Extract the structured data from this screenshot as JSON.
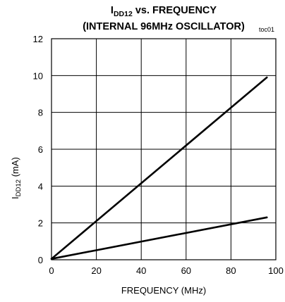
{
  "chart_data": {
    "type": "line",
    "title": {
      "line1_main": "I",
      "line1_sub": "DD12",
      "line1_rest": " vs. FREQUENCY",
      "line2": "(INTERNAL 96MHz OSCILLATOR)"
    },
    "annotation": "toc01",
    "xlabel": "FREQUENCY (MHz)",
    "ylabel": {
      "main": "I",
      "sub": "DD12",
      "rest": " (mA)"
    },
    "xlim": [
      0,
      100
    ],
    "ylim": [
      0,
      12
    ],
    "xticks": [
      0,
      20,
      40,
      60,
      80,
      100
    ],
    "yticks": [
      0,
      2,
      4,
      6,
      8,
      10,
      12
    ],
    "grid": true,
    "series": [
      {
        "x": [
          0,
          96
        ],
        "y": [
          0.05,
          9.9
        ]
      },
      {
        "x": [
          0,
          96
        ],
        "y": [
          0.05,
          2.3
        ]
      }
    ]
  }
}
